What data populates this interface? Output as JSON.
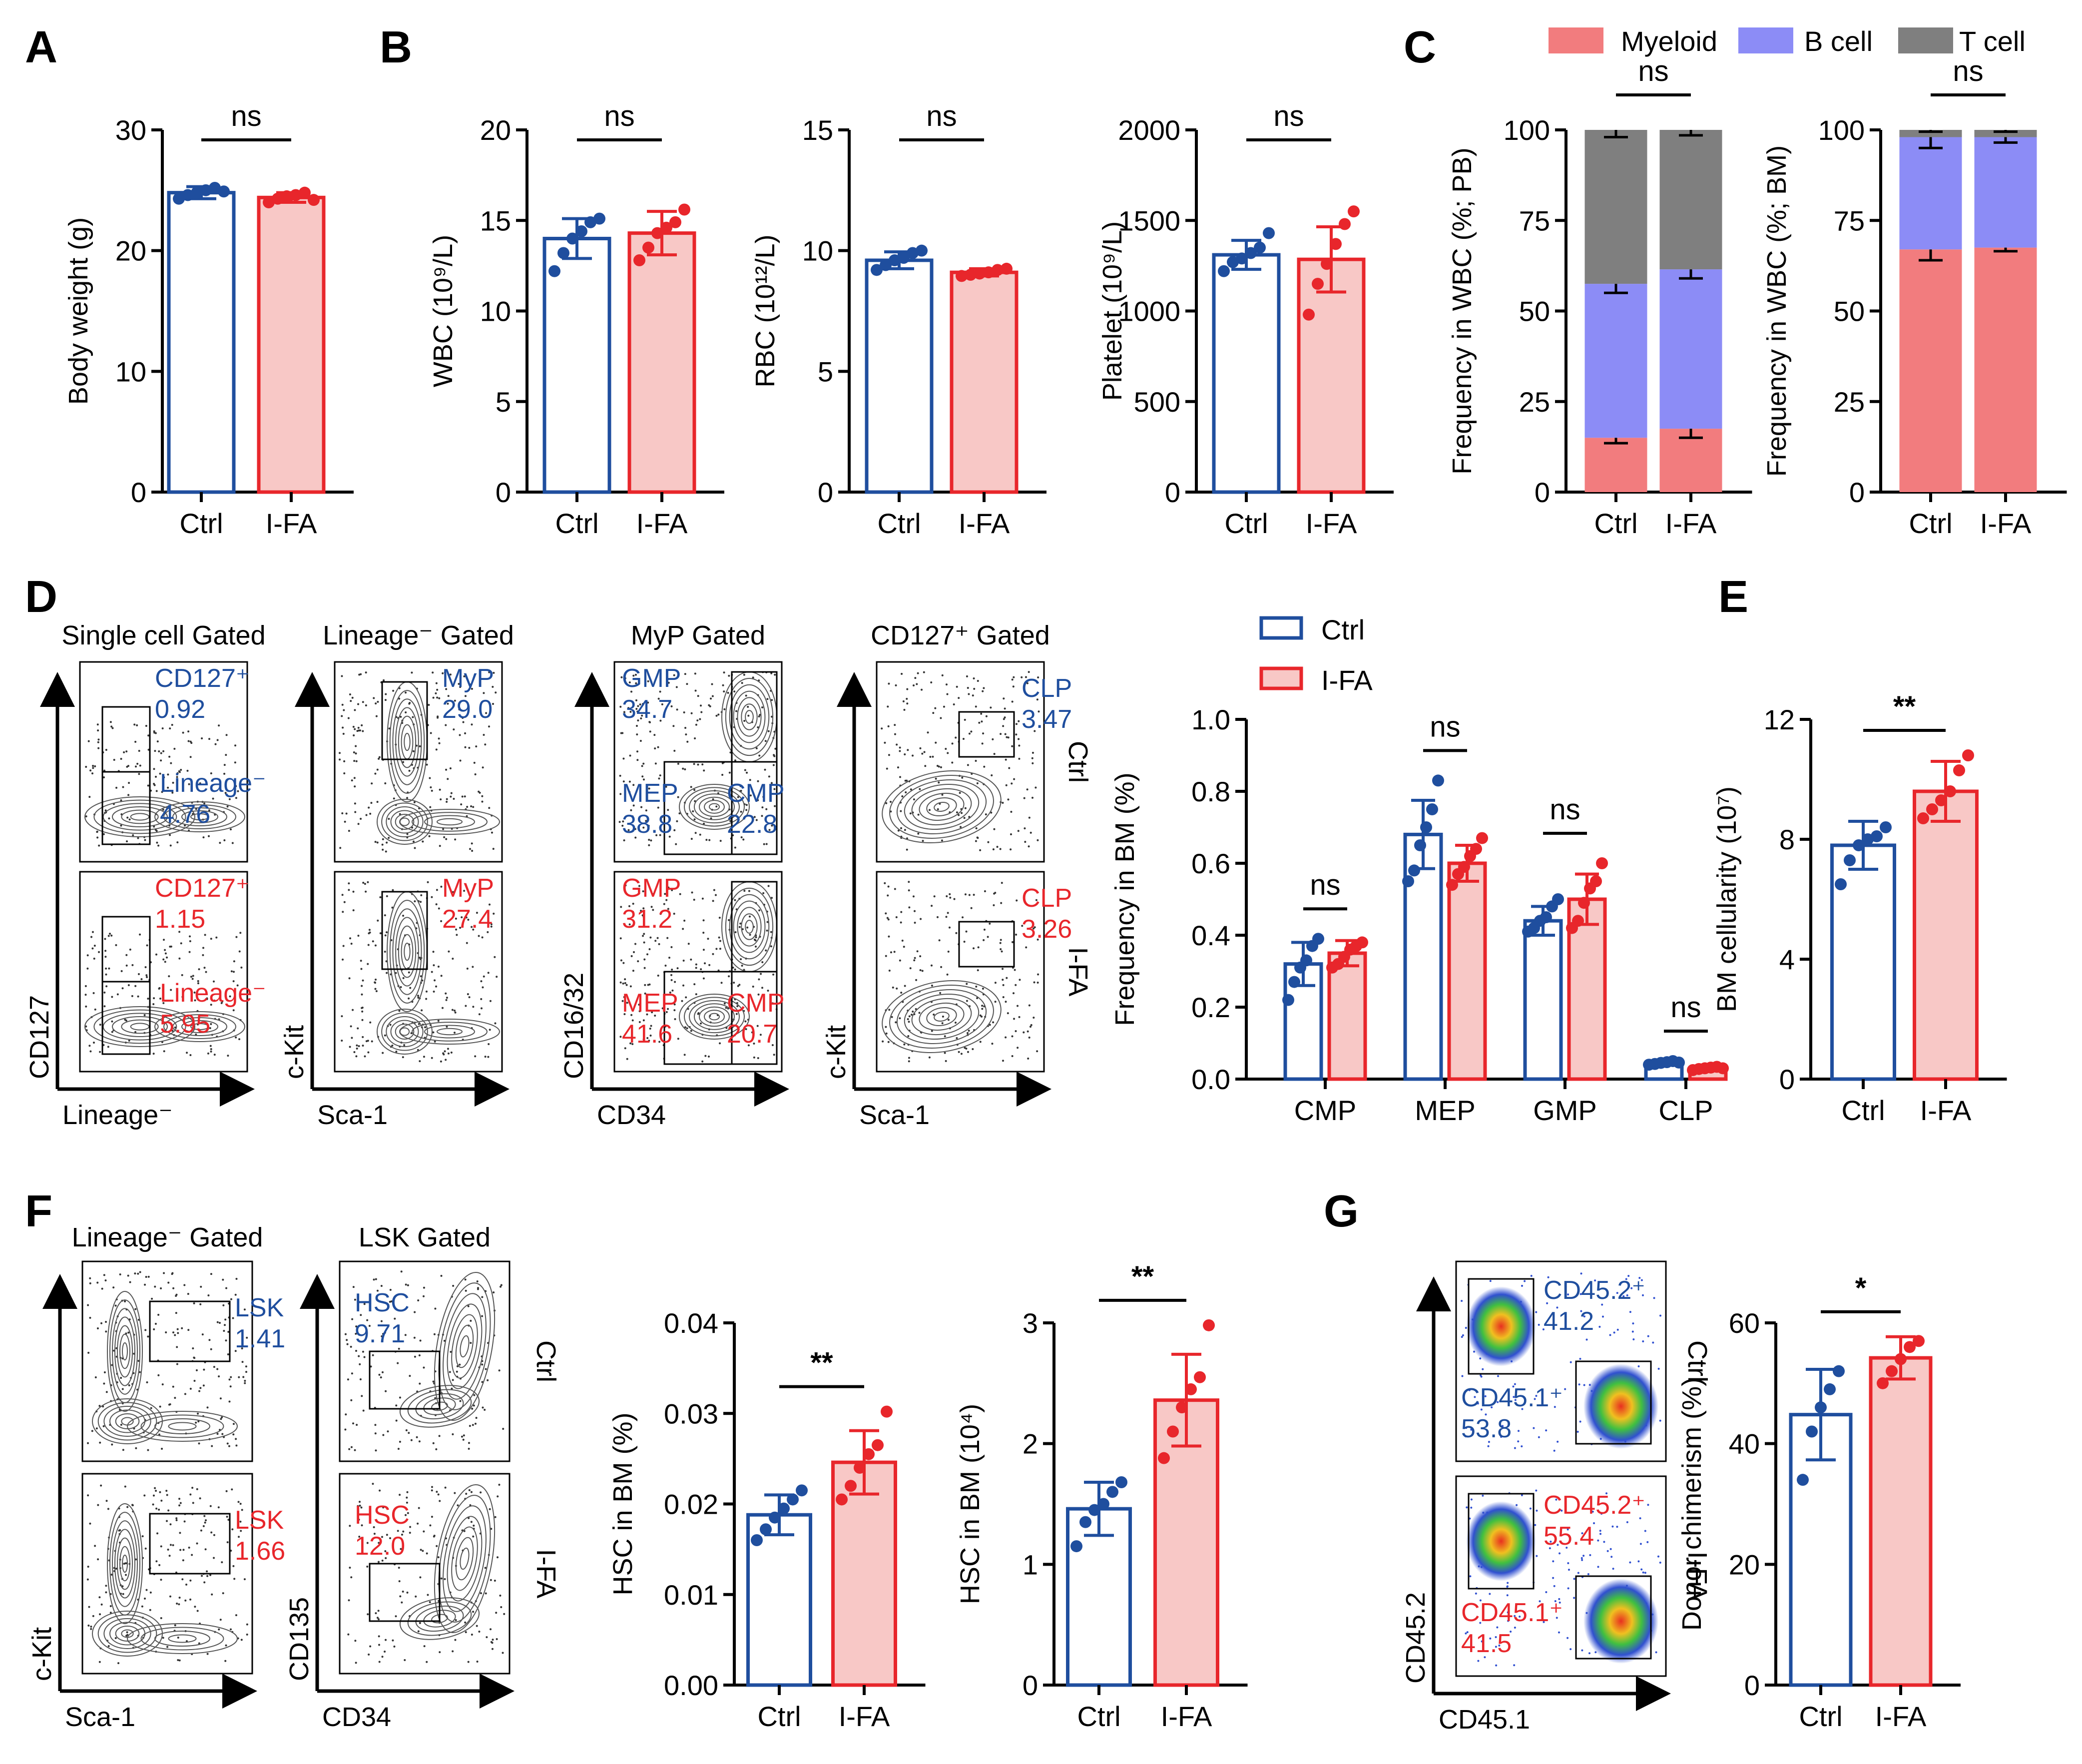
{
  "colors": {
    "ctrl": "#1f4e9e",
    "ifa": "#e8262b",
    "ifa_fill": "#f8c8c6",
    "myeloid": "#f27c7e",
    "bcell": "#8c8cf6",
    "tcell": "#7f7f7f"
  },
  "panel_letters": [
    "A",
    "B",
    "C",
    "D",
    "E",
    "F",
    "G"
  ],
  "chart_data": [
    {
      "id": "A",
      "type": "bar",
      "categories": [
        "Ctrl",
        "I-FA"
      ],
      "values": [
        24.8,
        24.4
      ],
      "errors": [
        0.5,
        0.4
      ],
      "points": [
        [
          24.3,
          24.6,
          24.8,
          25.0,
          25.2,
          24.9
        ],
        [
          24.0,
          24.3,
          24.5,
          24.6,
          24.8,
          24.2
        ]
      ],
      "ylabel": "Body weight (g)",
      "ylim": [
        0,
        30
      ],
      "yticks": [
        "0",
        "10",
        "20",
        "30"
      ],
      "sig": "ns"
    },
    {
      "id": "B1",
      "type": "bar",
      "categories": [
        "Ctrl",
        "I-FA"
      ],
      "values": [
        14.0,
        14.3
      ],
      "errors": [
        1.1,
        1.2
      ],
      "points": [
        [
          12.2,
          13.2,
          14.0,
          14.4,
          14.9,
          15.1
        ],
        [
          12.8,
          13.5,
          14.3,
          14.6,
          14.9,
          15.6
        ]
      ],
      "ylabel": "WBC (10⁹/L)",
      "ylim": [
        0,
        20
      ],
      "yticks": [
        "0",
        "5",
        "10",
        "15",
        "20"
      ],
      "sig": "ns"
    },
    {
      "id": "B2",
      "type": "bar",
      "categories": [
        "Ctrl",
        "I-FA"
      ],
      "values": [
        9.6,
        9.1
      ],
      "errors": [
        0.35,
        0.15
      ],
      "points": [
        [
          9.2,
          9.4,
          9.6,
          9.7,
          9.9,
          10.0
        ],
        [
          8.95,
          9.0,
          9.05,
          9.1,
          9.2,
          9.25
        ]
      ],
      "ylabel": "RBC (10¹²/L)",
      "ylim": [
        0,
        15
      ],
      "yticks": [
        "0",
        "5",
        "10",
        "15"
      ],
      "sig": "ns"
    },
    {
      "id": "B3",
      "type": "bar",
      "categories": [
        "Ctrl",
        "I-FA"
      ],
      "values": [
        1310,
        1285
      ],
      "errors": [
        80,
        180
      ],
      "points": [
        [
          1220,
          1270,
          1290,
          1320,
          1350,
          1430
        ],
        [
          980,
          1150,
          1260,
          1370,
          1480,
          1550
        ]
      ],
      "ylabel": "Platelet (10⁹/L)",
      "ylim": [
        0,
        2000
      ],
      "yticks": [
        "0",
        "500",
        "1000",
        "1500",
        "2000"
      ],
      "sig": "ns"
    },
    {
      "id": "C1",
      "type": "stacked_bar",
      "categories": [
        "Ctrl",
        "I-FA"
      ],
      "series": [
        {
          "name": "Myeloid",
          "values": [
            15,
            17.5
          ],
          "errors": [
            1.5,
            2.5
          ]
        },
        {
          "name": "B cell",
          "values": [
            42.5,
            44
          ],
          "errors": [
            2.5,
            2.5
          ]
        },
        {
          "name": "T cell",
          "values": [
            42.5,
            38.5
          ],
          "errors": [
            2.0,
            1.5
          ]
        }
      ],
      "ylabel": "Frequency in WBC (%; PB)",
      "ylim": [
        0,
        100
      ],
      "yticks": [
        "0",
        "25",
        "50",
        "75",
        "100"
      ],
      "sig": "ns"
    },
    {
      "id": "C2",
      "type": "stacked_bar",
      "categories": [
        "Ctrl",
        "I-FA"
      ],
      "series": [
        {
          "name": "Myeloid",
          "values": [
            67,
            67.5
          ],
          "errors": [
            3.0,
            1.0
          ]
        },
        {
          "name": "B cell",
          "values": [
            31,
            30.5
          ],
          "errors": [
            3.0,
            1.5
          ]
        },
        {
          "name": "T cell",
          "values": [
            2,
            2
          ],
          "errors": [
            0.5,
            0.5
          ]
        }
      ],
      "ylabel": "Frequency in WBC (%; BM)",
      "ylim": [
        0,
        100
      ],
      "yticks": [
        "0",
        "25",
        "50",
        "75",
        "100"
      ],
      "sig": "ns"
    },
    {
      "id": "D",
      "type": "grouped_bar",
      "categories": [
        "CMP",
        "MEP",
        "GMP",
        "CLP"
      ],
      "series": [
        {
          "name": "Ctrl",
          "values": [
            0.32,
            0.68,
            0.44,
            0.045
          ],
          "errors": [
            0.06,
            0.095,
            0.04,
            0.005
          ],
          "points": [
            [
              0.22,
              0.27,
              0.31,
              0.33,
              0.37,
              0.39
            ],
            [
              0.55,
              0.58,
              0.65,
              0.7,
              0.75,
              0.83
            ],
            [
              0.41,
              0.42,
              0.44,
              0.45,
              0.48,
              0.5
            ],
            [
              0.04,
              0.042,
              0.045,
              0.047,
              0.05,
              0.046
            ]
          ]
        },
        {
          "name": "I-FA",
          "values": [
            0.35,
            0.6,
            0.5,
            0.03
          ],
          "errors": [
            0.035,
            0.05,
            0.07,
            0.005
          ],
          "points": [
            [
              0.31,
              0.32,
              0.34,
              0.36,
              0.37,
              0.38
            ],
            [
              0.54,
              0.57,
              0.59,
              0.62,
              0.64,
              0.67
            ],
            [
              0.42,
              0.44,
              0.49,
              0.53,
              0.55,
              0.6
            ],
            [
              0.025,
              0.028,
              0.03,
              0.032,
              0.034,
              0.03
            ]
          ]
        }
      ],
      "ylabel": "Frequency in BM (%)",
      "ylim": [
        0,
        1.0
      ],
      "yticks": [
        "0.0",
        "0.2",
        "0.4",
        "0.6",
        "0.8",
        "1.0"
      ],
      "sig": [
        "ns",
        "ns",
        "ns",
        "ns"
      ],
      "legend": [
        "Ctrl",
        "I-FA"
      ]
    },
    {
      "id": "E",
      "type": "bar",
      "categories": [
        "Ctrl",
        "I-FA"
      ],
      "values": [
        7.8,
        9.6
      ],
      "errors": [
        0.8,
        1.0
      ],
      "points": [
        [
          6.5,
          7.3,
          7.8,
          8.0,
          8.1,
          8.4
        ],
        [
          8.7,
          9.0,
          9.3,
          9.6,
          10.3,
          10.8
        ]
      ],
      "ylabel": "BM cellularity (10⁷)",
      "ylim": [
        0,
        12
      ],
      "yticks": [
        "0",
        "4",
        "8",
        "12"
      ],
      "sig": "**"
    },
    {
      "id": "F1",
      "type": "bar",
      "categories": [
        "Ctrl",
        "I-FA"
      ],
      "values": [
        0.0188,
        0.0246
      ],
      "errors": [
        0.0022,
        0.0035
      ],
      "points": [
        [
          0.016,
          0.0172,
          0.0185,
          0.0195,
          0.0205,
          0.0215
        ],
        [
          0.0205,
          0.022,
          0.024,
          0.0255,
          0.0265,
          0.0302
        ]
      ],
      "ylabel": "HSC in BM (%)",
      "ylim": [
        0,
        0.04
      ],
      "yticks": [
        "0.00",
        "0.01",
        "0.02",
        "0.03",
        "0.04"
      ],
      "sig": "**"
    },
    {
      "id": "F2",
      "type": "bar",
      "categories": [
        "Ctrl",
        "I-FA"
      ],
      "values": [
        1.46,
        2.36
      ],
      "errors": [
        0.22,
        0.38
      ],
      "points": [
        [
          1.15,
          1.35,
          1.45,
          1.5,
          1.6,
          1.68
        ],
        [
          1.88,
          2.1,
          2.3,
          2.45,
          2.55,
          2.98
        ]
      ],
      "ylabel": "HSC in BM (10⁴)",
      "ylim": [
        0,
        3
      ],
      "yticks": [
        "0",
        "1",
        "2",
        "3"
      ],
      "sig": "**"
    },
    {
      "id": "G",
      "type": "bar",
      "categories": [
        "Ctrl",
        "I-FA"
      ],
      "values": [
        44.8,
        54.2
      ],
      "errors": [
        7.5,
        3.5
      ],
      "points": [
        [
          34,
          42,
          46,
          49,
          52
        ],
        [
          50,
          52,
          54,
          56,
          57
        ]
      ],
      "ylabel": "Donor chimerism (%)",
      "ylim": [
        0,
        60
      ],
      "yticks": [
        "0",
        "20",
        "40",
        "60"
      ],
      "sig": "*"
    }
  ],
  "legend_c": [
    "Myeloid",
    "B cell",
    "T cell"
  ],
  "flow_D": {
    "titles": [
      "Single cell Gated",
      "Lineage⁻ Gated",
      "MyP Gated",
      "CD127⁺ Gated"
    ],
    "axes": [
      {
        "x": "Lineage⁻",
        "y": "CD127"
      },
      {
        "x": "Sca-1",
        "y": "c-Kit"
      },
      {
        "x": "CD34",
        "y": "CD16/32"
      },
      {
        "x": "Sca-1",
        "y": "c-Kit"
      }
    ],
    "ctrl": {
      "cd127_label": "CD127⁺",
      "cd127_val": "0.92",
      "lin_label": "Lineage⁻",
      "lin_val": "4.76",
      "myp_label": "MyP",
      "myp_val": "29.0",
      "gmp_label": "GMP",
      "gmp_val": "34.7",
      "mep_label": "MEP",
      "mep_val": "38.8",
      "cmp_label": "CMP",
      "cmp_val": "22.8",
      "clp_label": "CLP",
      "clp_val": "3.47"
    },
    "ifa": {
      "cd127_label": "CD127⁺",
      "cd127_val": "1.15",
      "lin_label": "Lineage⁻",
      "lin_val": "5.95",
      "myp_label": "MyP",
      "myp_val": "27.4",
      "gmp_label": "GMP",
      "gmp_val": "31.2",
      "mep_label": "MEP",
      "mep_val": "41.6",
      "cmp_label": "CMP",
      "cmp_val": "20.7",
      "clp_label": "CLP",
      "clp_val": "3.26"
    },
    "row_labels": [
      "Ctrl",
      "I-FA"
    ]
  },
  "flow_F": {
    "titles": [
      "Lineage⁻ Gated",
      "LSK Gated"
    ],
    "axes": [
      {
        "x": "Sca-1",
        "y": "c-Kit"
      },
      {
        "x": "CD34",
        "y": "CD135"
      }
    ],
    "ctrl": {
      "lsk_label": "LSK",
      "lsk_val": "1.41",
      "hsc_label": "HSC",
      "hsc_val": "9.71"
    },
    "ifa": {
      "lsk_label": "LSK",
      "lsk_val": "1.66",
      "hsc_label": "HSC",
      "hsc_val": "12.0"
    },
    "row_labels": [
      "Ctrl",
      "I-FA"
    ]
  },
  "flow_G": {
    "axes": {
      "x": "CD45.1",
      "y": "CD45.2"
    },
    "ctrl": {
      "cd452_label": "CD45.2⁺",
      "cd452_val": "41.2",
      "cd451_label": "CD45.1⁺",
      "cd451_val": "53.8"
    },
    "ifa": {
      "cd452_label": "CD45.2⁺",
      "cd452_val": "55.4",
      "cd451_label": "CD45.1⁺",
      "cd451_val": "41.5"
    },
    "row_labels": [
      "Ctrl",
      "I-FA"
    ]
  }
}
